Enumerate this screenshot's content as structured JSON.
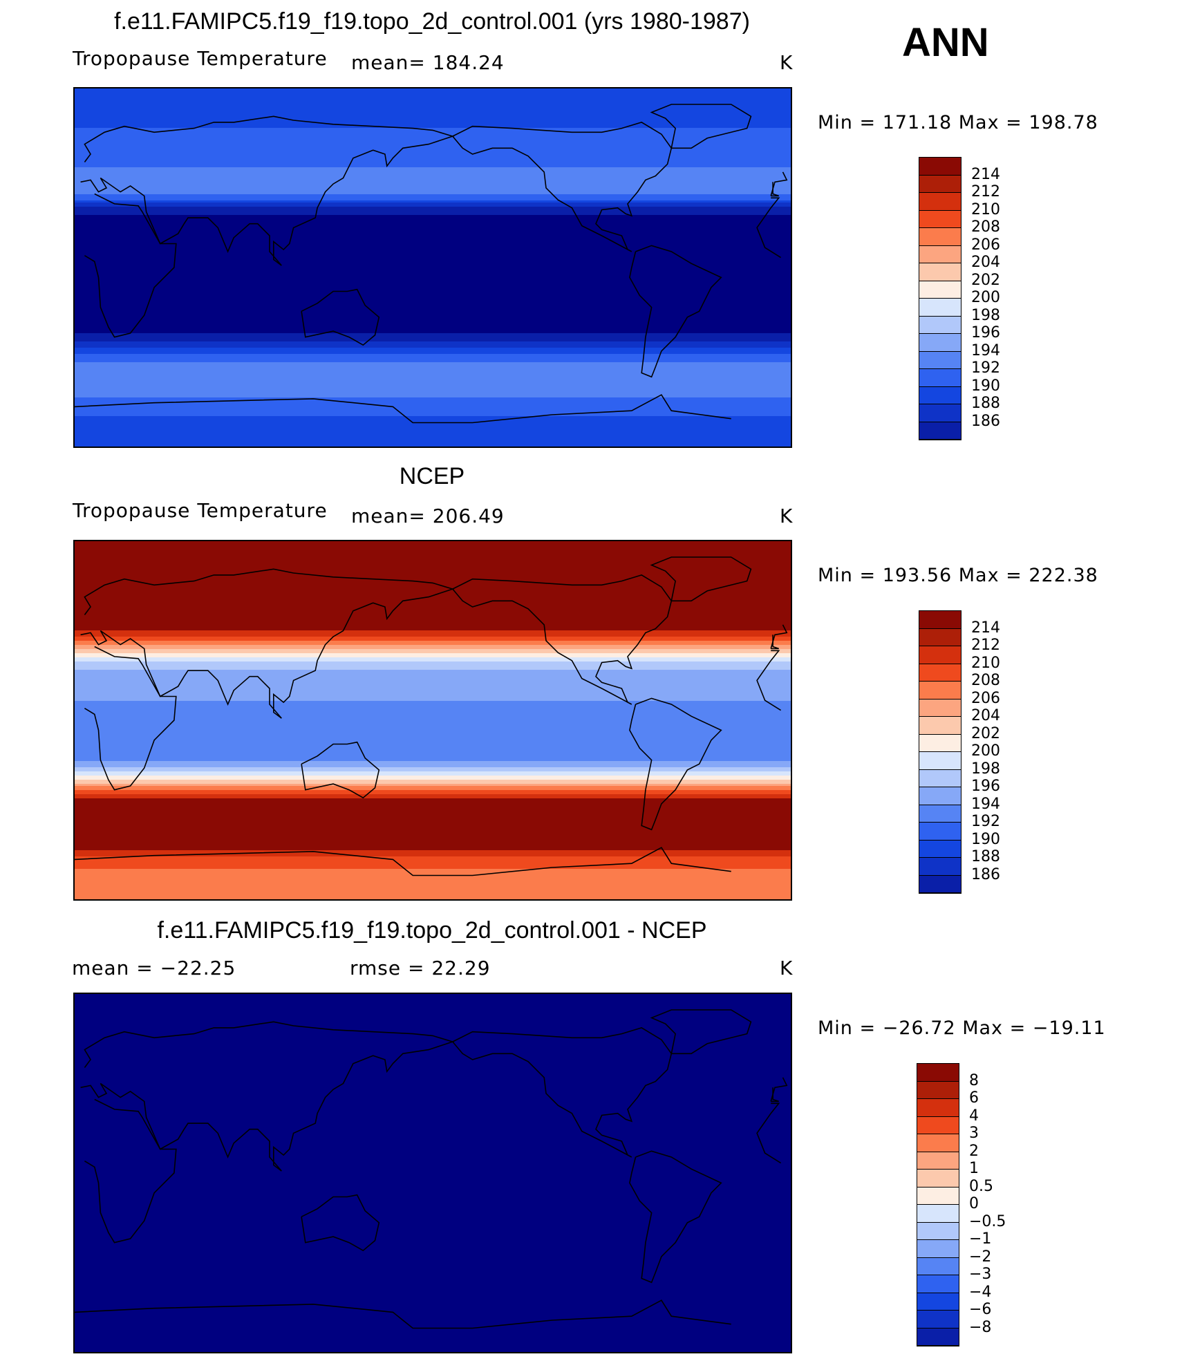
{
  "season": "ANN",
  "palette": [
    "#000080",
    "#0a1fa8",
    "#0f33c7",
    "#1446e0",
    "#2f62f0",
    "#5684f4",
    "#86a8f7",
    "#b1c8fa",
    "#d7e5fc",
    "#fdeee3",
    "#fcc9ad",
    "#fca580",
    "#fb7c4c",
    "#ef4a1e",
    "#d4300e",
    "#ad1f08",
    "#8a0a04"
  ],
  "panels": [
    {
      "title": "f.e11.FAMIPC5.f19_f19.topo_2d_control.001 (yrs 1980-1987)",
      "left_label": "Tropopause  Temperature",
      "stat_label": "mean=  184.24",
      "units": "K",
      "minmax": "Min  =  171.18  Max  =  198.78"
    },
    {
      "title": "NCEP",
      "left_label": "Tropopause  Temperature",
      "stat_label": "mean=  206.49",
      "units": "K",
      "minmax": "Min  =  193.56  Max  =  222.38"
    },
    {
      "title": "f.e11.FAMIPC5.f19_f19.topo_2d_control.001 - NCEP",
      "left_label": "mean  =  −22.25",
      "stat_label": "rmse  =    22.29",
      "units": "K",
      "minmax": "Min  =  −26.72  Max  =  −19.11"
    }
  ],
  "chart_data": [
    {
      "type": "heatmap",
      "projection": "global cylindrical equidistant, centered on 180°",
      "variable": "Tropopause Temperature",
      "units": "K",
      "mean": 184.24,
      "min": 171.18,
      "max": 198.78,
      "colorbar_labels": [
        "214",
        "212",
        "210",
        "208",
        "206",
        "204",
        "202",
        "200",
        "198",
        "196",
        "194",
        "192",
        "190",
        "188",
        "186"
      ],
      "zonal_profile": {
        "lat": [
          90,
          80,
          70,
          60,
          50,
          45,
          40,
          35,
          30,
          20,
          0,
          -20,
          -30,
          -35,
          -40,
          -45,
          -50,
          -60,
          -70,
          -80,
          -90
        ],
        "value": [
          190,
          191,
          192,
          193,
          194,
          195,
          196,
          193,
          187,
          184,
          184,
          184,
          185,
          187,
          190,
          193,
          195,
          195,
          193,
          191,
          190
        ]
      }
    },
    {
      "type": "heatmap",
      "projection": "global cylindrical equidistant, centered on 180°",
      "variable": "Tropopause Temperature",
      "units": "K",
      "mean": 206.49,
      "min": 193.56,
      "max": 222.38,
      "colorbar_labels": [
        "214",
        "212",
        "210",
        "208",
        "206",
        "204",
        "202",
        "200",
        "198",
        "196",
        "194",
        "192",
        "190",
        "188",
        "186"
      ],
      "zonal_profile": {
        "lat": [
          90,
          60,
          50,
          45,
          40,
          35,
          30,
          25,
          20,
          0,
          -20,
          -25,
          -30,
          -35,
          -40,
          -60,
          -65,
          -70,
          -80,
          -90
        ],
        "value": [
          216,
          216,
          216,
          214,
          210,
          205,
          200,
          198,
          197,
          195,
          196,
          199,
          204,
          210,
          215,
          216,
          214,
          211,
          209,
          209
        ]
      }
    },
    {
      "type": "heatmap",
      "projection": "global cylindrical equidistant, centered on 180°",
      "variable": "Tropopause Temperature difference (model - NCEP)",
      "units": "K",
      "mean": -22.25,
      "rmse": 22.29,
      "min": -26.72,
      "max": -19.11,
      "colorbar_labels": [
        "8",
        "6",
        "4",
        "3",
        "2",
        "1",
        "0.5",
        "0",
        "−0.5",
        "−1",
        "−2",
        "−3",
        "−4",
        "−6",
        "−8"
      ],
      "zonal_profile": {
        "lat": [
          90,
          0,
          -90
        ],
        "value": [
          -22,
          -22,
          -22
        ]
      }
    }
  ]
}
